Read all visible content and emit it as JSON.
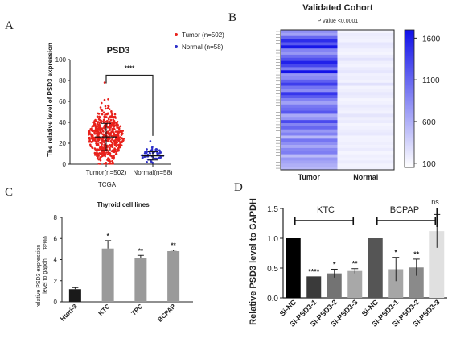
{
  "panels": {
    "A": {
      "letter": "A",
      "title": "PSD3",
      "significance": "****",
      "ylabel": "The relative level of PSD3 expression",
      "xlabel": "TCGA"
    },
    "B": {
      "letter": "B",
      "title": "Validated Cohort",
      "subtitle": "P value <0.0001"
    },
    "C": {
      "letter": "C",
      "title": "Thyroid cell lines",
      "ylabel_1": "relative PSD3 expression",
      "ylabel_2": "level to gapdh",
      "ylabel_3": "(RPKM)"
    },
    "D": {
      "letter": "D",
      "ylabel": "Relative PSD3 level to GAPDH",
      "group1": "KTC",
      "group2": "BCPAP",
      "ns": "ns"
    }
  },
  "chart_data": [
    {
      "type": "scatter",
      "panel": "A",
      "title": "PSD3",
      "xlabel": "TCGA",
      "ylabel": "The relative level of PSD3 expression",
      "categories": [
        "Tumor(n=502)",
        "Normal(n=58)"
      ],
      "ylim": [
        0,
        100
      ],
      "yticks": [
        0,
        20,
        40,
        60,
        80,
        100
      ],
      "series": [
        {
          "name": "Tumor (n=502)",
          "color": "#e8211b",
          "n": 502,
          "mean": 26,
          "sd": 13,
          "max": 78,
          "min": 0.5
        },
        {
          "name": "Normal (n=58)",
          "color": "#2d2fc8",
          "n": 58,
          "mean": 8,
          "sd": 4,
          "max": 22,
          "min": 0.5
        }
      ],
      "annotations": [
        "****"
      ],
      "legend": "top-right"
    },
    {
      "type": "heatmap",
      "panel": "B",
      "title": "Validated Cohort",
      "subtitle": "P value <0.0001",
      "columns": [
        "Tumor",
        "Normal"
      ],
      "colorbar_ticks": [
        100,
        600,
        1100,
        1600
      ],
      "colorbar_range": [
        50,
        1700
      ],
      "colors": {
        "low": "#ffffff",
        "high": "#1010e8"
      },
      "tumor": [
        820,
        700,
        1100,
        1500,
        1200,
        1650,
        900,
        760,
        1050,
        1250,
        1580,
        1320,
        950,
        1680,
        780,
        860,
        1150,
        1380,
        1000,
        840,
        1440,
        1180,
        920,
        700,
        980,
        1060,
        1210,
        640,
        780,
        1300,
        900,
        1100,
        760,
        920,
        540,
        1000,
        820,
        660,
        880,
        940,
        520,
        760,
        680,
        600,
        540
      ],
      "normal": [
        120,
        180,
        160,
        140,
        220,
        200,
        150,
        120,
        180,
        240,
        160,
        130,
        190,
        220,
        150,
        170,
        140,
        260,
        130,
        160,
        210,
        180,
        120,
        150,
        200,
        170,
        140,
        230,
        160,
        190,
        120,
        150,
        180,
        210,
        130,
        140,
        170,
        150,
        190,
        120,
        160,
        140,
        180,
        130,
        150
      ]
    },
    {
      "type": "bar",
      "panel": "C",
      "title": "Thyroid cell lines",
      "ylabel": "relative PSD3 expression level to gapdh (RPKM)",
      "categories": [
        "Htori-3",
        "KTC",
        "TPC",
        "BCPAP"
      ],
      "values": [
        1.2,
        5.05,
        4.15,
        4.8
      ],
      "errors": [
        0.15,
        0.75,
        0.25,
        0.1
      ],
      "colors": [
        "#1a1a1a",
        "#9a9a9a",
        "#9a9a9a",
        "#9a9a9a"
      ],
      "significance": [
        "",
        "*",
        "**",
        "**"
      ],
      "ylim": [
        0,
        8
      ],
      "yticks": [
        0,
        2,
        4,
        6,
        8
      ]
    },
    {
      "type": "bar",
      "panel": "D",
      "ylabel": "Relative PSD3 level to GAPDH",
      "categories": [
        "Si-NC",
        "Si-PSD3-1",
        "Si-PSD3-2",
        "Si-PSD3-3",
        "Si-NC",
        "Si-PSD3-1",
        "Si-PSD3-2",
        "Si-PSD3-3"
      ],
      "values": [
        1.0,
        0.36,
        0.41,
        0.45,
        1.0,
        0.48,
        0.51,
        1.12
      ],
      "errors": [
        0,
        0,
        0.07,
        0.04,
        0,
        0.2,
        0.14,
        0.28
      ],
      "colors": [
        "#000000",
        "#3a3a3a",
        "#737373",
        "#a8a8a8",
        "#555555",
        "#a6a6a6",
        "#8a8a8a",
        "#e0e0e0"
      ],
      "significance": [
        "",
        "****",
        "*",
        "**",
        "",
        "*",
        "**",
        "ns"
      ],
      "groups": [
        {
          "name": "KTC",
          "from": 0,
          "to": 3
        },
        {
          "name": "BCPAP",
          "from": 4,
          "to": 7
        }
      ],
      "ylim": [
        0,
        1.5
      ],
      "yticks": [
        0.0,
        0.5,
        1.0,
        1.5
      ]
    }
  ]
}
